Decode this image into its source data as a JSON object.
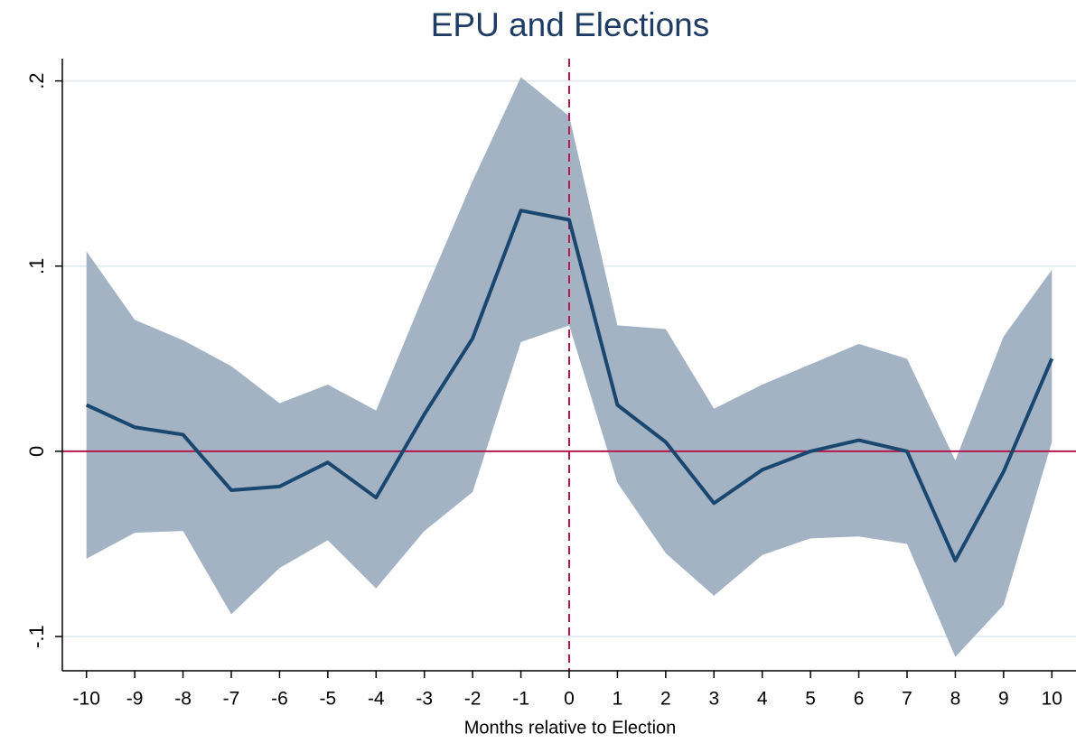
{
  "chart_data": {
    "type": "line",
    "title": "EPU and Elections",
    "x_label": "Months relative to Election",
    "x": [
      -10,
      -9,
      -8,
      -7,
      -6,
      -5,
      -4,
      -3,
      -2,
      -1,
      0,
      1,
      2,
      3,
      4,
      5,
      6,
      7,
      8,
      9,
      10
    ],
    "series": [
      {
        "color": "#1a476f",
        "values": [
          0.025,
          0.013,
          0.009,
          -0.021,
          -0.019,
          -0.006,
          -0.025,
          0.02,
          0.061,
          0.13,
          0.125,
          0.025,
          0.005,
          -0.028,
          -0.01,
          0,
          0.006,
          0,
          -0.059,
          -0.011,
          0.05
        ]
      }
    ],
    "band": {
      "color": "#a3b3c4",
      "upper": [
        0.108,
        0.071,
        0.06,
        0.046,
        0.026,
        0.036,
        0.022,
        0.085,
        0.146,
        0.202,
        0.181,
        0.068,
        0.066,
        0.023,
        0.036,
        0.047,
        0.058,
        0.05,
        -0.005,
        0.062,
        0.098
      ],
      "lower": [
        -0.058,
        -0.044,
        -0.043,
        -0.088,
        -0.063,
        -0.048,
        -0.074,
        -0.043,
        -0.022,
        0.059,
        0.068,
        -0.017,
        -0.055,
        -0.078,
        -0.056,
        -0.047,
        -0.046,
        -0.05,
        -0.111,
        -0.083,
        0.005
      ]
    },
    "reference_lines": {
      "x": 0,
      "y": 0,
      "color": "#b5184b"
    },
    "xlim": [
      -10.5,
      10.5
    ],
    "xticks": [
      -10,
      -9,
      -8,
      -7,
      -6,
      -5,
      -4,
      -3,
      -2,
      -1,
      0,
      1,
      2,
      3,
      4,
      5,
      6,
      7,
      8,
      9,
      10
    ],
    "ylim": [
      -0.1185,
      0.212
    ],
    "yticks": [
      {
        "value": -0.1,
        "label": "-.1"
      },
      0,
      {
        "value": 0.1,
        "label": ".1"
      },
      {
        "value": 0.2,
        "label": ".2"
      }
    ],
    "grid": true
  }
}
